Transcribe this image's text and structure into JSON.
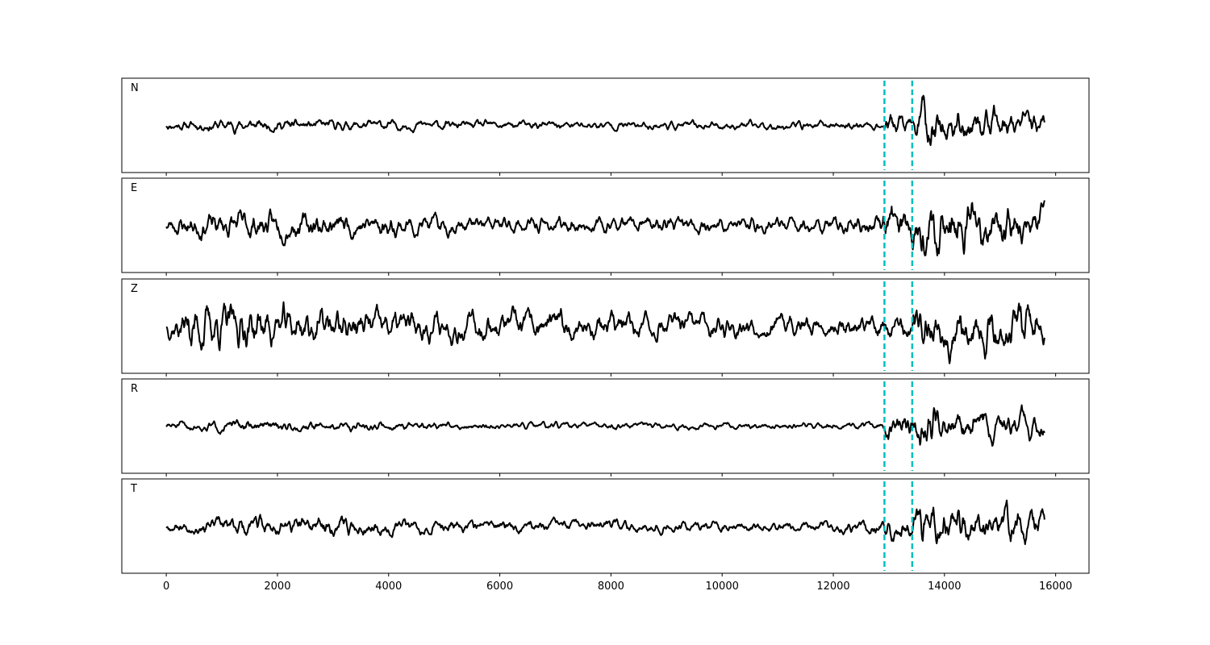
{
  "chart_data": {
    "type": "line",
    "title": "",
    "xlabel": "",
    "ylabel": "",
    "xlim": [
      -800,
      16600
    ],
    "xticks": [
      0,
      2000,
      4000,
      6000,
      8000,
      10000,
      12000,
      14000,
      16000
    ],
    "xtick_labels": [
      "0",
      "2000",
      "4000",
      "6000",
      "8000",
      "10000",
      "12000",
      "14000",
      "16000"
    ],
    "sample_count": 15800,
    "y_ticks_shown": false,
    "grid": false,
    "markers": [
      {
        "x": 12920,
        "style": "dashed",
        "color": "#00bfbf"
      },
      {
        "x": 13420,
        "style": "dashed",
        "color": "#00bfbf"
      }
    ],
    "trace_color": "#000000",
    "panels": [
      {
        "label": "N",
        "amplitude_profile": [
          [
            0,
            0.16
          ],
          [
            500,
            0.18
          ],
          [
            900,
            0.23
          ],
          [
            1500,
            0.2
          ],
          [
            3000,
            0.18
          ],
          [
            6000,
            0.15
          ],
          [
            9000,
            0.14
          ],
          [
            12000,
            0.15
          ],
          [
            12880,
            0.16
          ],
          [
            12920,
            0.4
          ],
          [
            13100,
            0.5
          ],
          [
            13420,
            0.3
          ],
          [
            13600,
            1.0
          ],
          [
            14000,
            0.6
          ],
          [
            15000,
            0.5
          ],
          [
            15800,
            0.4
          ]
        ],
        "seed": 11
      },
      {
        "label": "E",
        "amplitude_profile": [
          [
            0,
            0.3
          ],
          [
            500,
            0.45
          ],
          [
            1200,
            0.52
          ],
          [
            1800,
            0.48
          ],
          [
            3500,
            0.42
          ],
          [
            6000,
            0.28
          ],
          [
            9000,
            0.26
          ],
          [
            12000,
            0.3
          ],
          [
            12880,
            0.33
          ],
          [
            12920,
            0.8
          ],
          [
            13100,
            0.85
          ],
          [
            13420,
            0.7
          ],
          [
            13600,
            1.0
          ],
          [
            14200,
            0.9
          ],
          [
            15000,
            0.75
          ],
          [
            15800,
            0.6
          ]
        ],
        "seed": 23
      },
      {
        "label": "Z",
        "amplitude_profile": [
          [
            0,
            0.35
          ],
          [
            450,
            1.0
          ],
          [
            700,
            0.9
          ],
          [
            1300,
            0.85
          ],
          [
            1800,
            0.8
          ],
          [
            3000,
            0.65
          ],
          [
            5000,
            0.55
          ],
          [
            8000,
            0.5
          ],
          [
            10000,
            0.45
          ],
          [
            12000,
            0.4
          ],
          [
            12880,
            0.4
          ],
          [
            13420,
            0.6
          ],
          [
            13600,
            0.9
          ],
          [
            14500,
            0.85
          ],
          [
            15400,
            0.95
          ],
          [
            15800,
            0.8
          ]
        ],
        "seed": 37
      },
      {
        "label": "R",
        "amplitude_profile": [
          [
            0,
            0.14
          ],
          [
            500,
            0.17
          ],
          [
            1500,
            0.2
          ],
          [
            3000,
            0.16
          ],
          [
            6000,
            0.12
          ],
          [
            9000,
            0.11
          ],
          [
            12000,
            0.12
          ],
          [
            12880,
            0.13
          ],
          [
            12920,
            0.4
          ],
          [
            13100,
            0.5
          ],
          [
            13420,
            0.35
          ],
          [
            13600,
            1.0
          ],
          [
            14000,
            0.6
          ],
          [
            15000,
            0.55
          ],
          [
            15800,
            0.45
          ]
        ],
        "seed": 51
      },
      {
        "label": "T",
        "amplitude_profile": [
          [
            0,
            0.2
          ],
          [
            600,
            0.28
          ],
          [
            1300,
            0.38
          ],
          [
            2600,
            0.4
          ],
          [
            3300,
            0.38
          ],
          [
            5000,
            0.25
          ],
          [
            8000,
            0.22
          ],
          [
            11000,
            0.2
          ],
          [
            12000,
            0.22
          ],
          [
            12880,
            0.28
          ],
          [
            12920,
            0.4
          ],
          [
            13100,
            0.55
          ],
          [
            13420,
            0.45
          ],
          [
            13600,
            1.0
          ],
          [
            14500,
            0.7
          ],
          [
            15400,
            0.75
          ],
          [
            15800,
            0.65
          ]
        ],
        "seed": 67
      }
    ]
  }
}
